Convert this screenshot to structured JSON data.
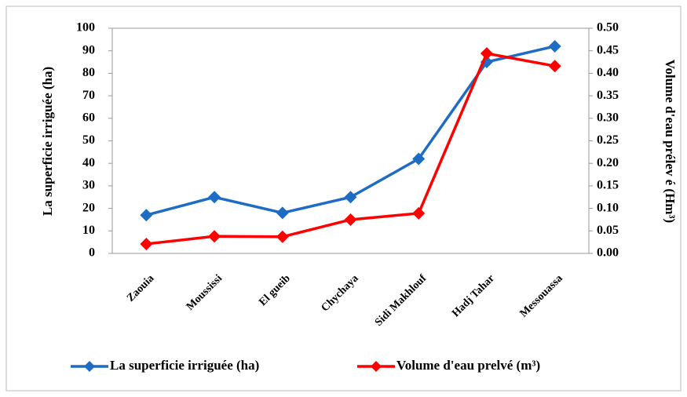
{
  "chart_data": {
    "type": "line",
    "ylabel": "La superficie irriguée (ha)",
    "y2label": "Volume d'eau prélev é (Hm³)",
    "categories": [
      "Zaouia",
      "Moussissi",
      "El gueib",
      "Chychaya",
      "Sidi Makhlouf",
      "Hadj Tahar",
      "Messouassa"
    ],
    "series": [
      {
        "name": "La superficie irriguée (ha)",
        "color": "#1f6cc4",
        "values": [
          17,
          25,
          18,
          25,
          42,
          85,
          92
        ]
      },
      {
        "name": "Volume d'eau prelvé (m³)",
        "color": "#ff0000",
        "axis": "y2",
        "values": [
          0.021,
          0.038,
          0.037,
          0.075,
          0.089,
          0.444,
          0.416
        ]
      }
    ],
    "ylim": [
      0,
      100
    ],
    "yticks": [
      0,
      10,
      20,
      30,
      40,
      50,
      60,
      70,
      80,
      90,
      100
    ],
    "y2lim": [
      0,
      0.5
    ],
    "y2ticks": [
      {
        "value": 0,
        "label": "0.00"
      },
      {
        "value": 0.05,
        "label": "0.05"
      },
      {
        "value": 0.1,
        "label": "0.10"
      },
      {
        "value": 0.15,
        "label": "0.15"
      },
      {
        "value": 0.2,
        "label": "0.20"
      },
      {
        "value": 0.25,
        "label": "0.25"
      },
      {
        "value": 0.3,
        "label": "0.30"
      },
      {
        "value": 0.35,
        "label": "0.35"
      },
      {
        "value": 0.4,
        "label": "0.40"
      },
      {
        "value": 0.45,
        "label": "0.45"
      },
      {
        "value": 0.5,
        "label": "0.50"
      }
    ],
    "grid": false,
    "legend": "bottom"
  }
}
